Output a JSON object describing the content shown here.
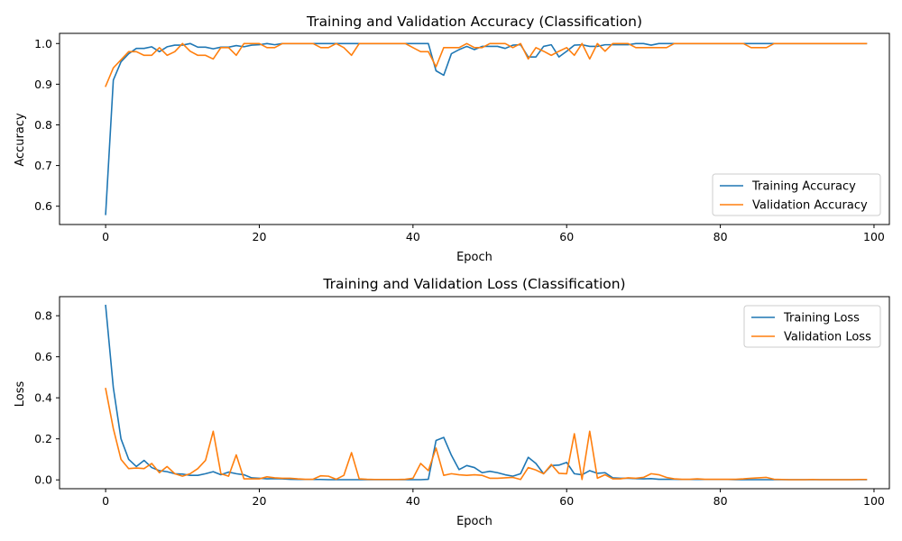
{
  "colors": {
    "training": "#1f77b4",
    "validation": "#ff7f0e",
    "axes": "#000000",
    "legend_border": "#cccccc"
  },
  "chart_data": [
    {
      "type": "line",
      "title": "Training and Validation Accuracy (Classification)",
      "xlabel": "Epoch",
      "ylabel": "Accuracy",
      "xlim": [
        -6,
        102
      ],
      "ylim": [
        0.555,
        1.025
      ],
      "xticks": [
        0,
        20,
        40,
        60,
        80,
        100
      ],
      "yticks": [
        0.6,
        0.7,
        0.8,
        0.9,
        1.0
      ],
      "ytick_labels": [
        "0.6",
        "0.7",
        "0.8",
        "0.9",
        "1.0"
      ],
      "grid": false,
      "legend_position": "lower-right",
      "series": [
        {
          "name": "Training Accuracy",
          "color_key": "training",
          "x": [
            0,
            1,
            2,
            3,
            4,
            5,
            6,
            7,
            8,
            9,
            10,
            11,
            12,
            13,
            14,
            15,
            16,
            17,
            18,
            19,
            20,
            21,
            22,
            23,
            24,
            25,
            26,
            27,
            28,
            29,
            30,
            31,
            32,
            33,
            34,
            35,
            36,
            37,
            38,
            39,
            40,
            41,
            42,
            43,
            44,
            45,
            46,
            47,
            48,
            49,
            50,
            51,
            52,
            53,
            54,
            55,
            56,
            57,
            58,
            59,
            60,
            61,
            62,
            63,
            64,
            65,
            66,
            67,
            68,
            69,
            70,
            71,
            72,
            73,
            74,
            75,
            76,
            77,
            78,
            79,
            80,
            81,
            82,
            83,
            84,
            85,
            86,
            87,
            88,
            89,
            90,
            91,
            92,
            93,
            94,
            95,
            96,
            97,
            98,
            99
          ],
          "values": [
            0.58,
            0.91,
            0.955,
            0.975,
            0.988,
            0.988,
            0.992,
            0.98,
            0.992,
            0.996,
            0.996,
            1.0,
            0.991,
            0.991,
            0.987,
            0.991,
            0.991,
            0.995,
            0.992,
            0.996,
            0.997,
            1.0,
            0.997,
            1.0,
            1.0,
            1.0,
            1.0,
            1.0,
            1.0,
            1.0,
            1.0,
            1.0,
            1.0,
            1.0,
            1.0,
            1.0,
            1.0,
            1.0,
            1.0,
            1.0,
            1.0,
            1.0,
            1.0,
            0.933,
            0.922,
            0.975,
            0.985,
            0.993,
            0.985,
            0.993,
            0.993,
            0.993,
            0.988,
            0.996,
            0.997,
            0.967,
            0.967,
            0.993,
            0.997,
            0.967,
            0.981,
            0.996,
            0.997,
            0.993,
            0.993,
            0.997,
            0.997,
            0.997,
            0.997,
            1.0,
            1.0,
            0.996,
            1.0,
            1.0,
            1.0,
            1.0,
            1.0,
            1.0,
            1.0,
            1.0,
            1.0,
            1.0,
            1.0,
            1.0,
            1.0,
            1.0,
            1.0,
            1.0,
            1.0,
            1.0,
            1.0,
            1.0,
            1.0,
            1.0,
            1.0,
            1.0,
            1.0,
            1.0,
            1.0,
            1.0
          ]
        },
        {
          "name": "Validation Accuracy",
          "color_key": "validation",
          "x": [
            0,
            1,
            2,
            3,
            4,
            5,
            6,
            7,
            8,
            9,
            10,
            11,
            12,
            13,
            14,
            15,
            16,
            17,
            18,
            19,
            20,
            21,
            22,
            23,
            24,
            25,
            26,
            27,
            28,
            29,
            30,
            31,
            32,
            33,
            34,
            35,
            36,
            37,
            38,
            39,
            40,
            41,
            42,
            43,
            44,
            45,
            46,
            47,
            48,
            49,
            50,
            51,
            52,
            53,
            54,
            55,
            56,
            57,
            58,
            59,
            60,
            61,
            62,
            63,
            64,
            65,
            66,
            67,
            68,
            69,
            70,
            71,
            72,
            73,
            74,
            75,
            76,
            77,
            78,
            79,
            80,
            81,
            82,
            83,
            84,
            85,
            86,
            87,
            88,
            89,
            90,
            91,
            92,
            93,
            94,
            95,
            96,
            97,
            98,
            99
          ],
          "values": [
            0.895,
            0.94,
            0.96,
            0.98,
            0.98,
            0.971,
            0.971,
            0.99,
            0.971,
            0.98,
            1.0,
            0.981,
            0.971,
            0.971,
            0.962,
            0.99,
            0.99,
            0.971,
            1.0,
            1.0,
            1.0,
            0.99,
            0.99,
            1.0,
            1.0,
            1.0,
            1.0,
            1.0,
            0.99,
            0.99,
            1.0,
            0.99,
            0.971,
            1.0,
            1.0,
            1.0,
            1.0,
            1.0,
            1.0,
            1.0,
            0.99,
            0.98,
            0.98,
            0.943,
            0.99,
            0.99,
            0.99,
            1.0,
            0.99,
            0.99,
            1.0,
            1.0,
            1.0,
            0.99,
            1.0,
            0.962,
            0.99,
            0.981,
            0.971,
            0.981,
            0.99,
            0.971,
            1.0,
            0.962,
            1.0,
            0.981,
            1.0,
            1.0,
            1.0,
            0.99,
            0.99,
            0.99,
            0.99,
            0.99,
            1.0,
            1.0,
            1.0,
            1.0,
            1.0,
            1.0,
            1.0,
            1.0,
            1.0,
            1.0,
            0.99,
            0.99,
            0.99,
            1.0,
            1.0,
            1.0,
            1.0,
            1.0,
            1.0,
            1.0,
            1.0,
            1.0,
            1.0,
            1.0,
            1.0,
            1.0
          ]
        }
      ]
    },
    {
      "type": "line",
      "title": "Training and Validation Loss (Classification)",
      "xlabel": "Epoch",
      "ylabel": "Loss",
      "xlim": [
        -6,
        102
      ],
      "ylim": [
        -0.043,
        0.893
      ],
      "xticks": [
        0,
        20,
        40,
        60,
        80,
        100
      ],
      "yticks": [
        0.0,
        0.2,
        0.4,
        0.6,
        0.8
      ],
      "ytick_labels": [
        "0.0",
        "0.2",
        "0.4",
        "0.6",
        "0.8"
      ],
      "grid": false,
      "legend_position": "upper-right",
      "series": [
        {
          "name": "Training Loss",
          "color_key": "training",
          "x": [
            0,
            1,
            2,
            3,
            4,
            5,
            6,
            7,
            8,
            9,
            10,
            11,
            12,
            13,
            14,
            15,
            16,
            17,
            18,
            19,
            20,
            21,
            22,
            23,
            24,
            25,
            26,
            27,
            28,
            29,
            30,
            31,
            32,
            33,
            34,
            35,
            36,
            37,
            38,
            39,
            40,
            41,
            42,
            43,
            44,
            45,
            46,
            47,
            48,
            49,
            50,
            51,
            52,
            53,
            54,
            55,
            56,
            57,
            58,
            59,
            60,
            61,
            62,
            63,
            64,
            65,
            66,
            67,
            68,
            69,
            70,
            71,
            72,
            73,
            74,
            75,
            76,
            77,
            78,
            79,
            80,
            81,
            82,
            83,
            84,
            85,
            86,
            87,
            88,
            89,
            90,
            91,
            92,
            93,
            94,
            95,
            96,
            97,
            98,
            99
          ],
          "values": [
            0.85,
            0.45,
            0.2,
            0.1,
            0.065,
            0.095,
            0.06,
            0.045,
            0.04,
            0.03,
            0.028,
            0.022,
            0.022,
            0.03,
            0.04,
            0.025,
            0.038,
            0.03,
            0.025,
            0.01,
            0.008,
            0.005,
            0.006,
            0.005,
            0.003,
            0.002,
            0.002,
            0.002,
            0.002,
            0.001,
            0.001,
            0.001,
            0.001,
            0.001,
            0.001,
            0.001,
            0.001,
            0.001,
            0.001,
            0.001,
            0.001,
            0.001,
            0.003,
            0.192,
            0.207,
            0.12,
            0.05,
            0.07,
            0.06,
            0.035,
            0.042,
            0.035,
            0.025,
            0.018,
            0.03,
            0.11,
            0.08,
            0.03,
            0.07,
            0.072,
            0.085,
            0.03,
            0.025,
            0.045,
            0.032,
            0.035,
            0.01,
            0.008,
            0.008,
            0.006,
            0.005,
            0.006,
            0.003,
            0.003,
            0.003,
            0.002,
            0.002,
            0.002,
            0.002,
            0.002,
            0.002,
            0.002,
            0.001,
            0.001,
            0.001,
            0.001,
            0.001,
            0.001,
            0.001,
            0.001,
            0.001,
            0.001,
            0.001,
            0.001,
            0.001,
            0.001,
            0.001,
            0.001,
            0.001,
            0.001
          ]
        },
        {
          "name": "Validation Loss",
          "color_key": "validation",
          "x": [
            0,
            1,
            2,
            3,
            4,
            5,
            6,
            7,
            8,
            9,
            10,
            11,
            12,
            13,
            14,
            15,
            16,
            17,
            18,
            19,
            20,
            21,
            22,
            23,
            24,
            25,
            26,
            27,
            28,
            29,
            30,
            31,
            32,
            33,
            34,
            35,
            36,
            37,
            38,
            39,
            40,
            41,
            42,
            43,
            44,
            45,
            46,
            47,
            48,
            49,
            50,
            51,
            52,
            53,
            54,
            55,
            56,
            57,
            58,
            59,
            60,
            61,
            62,
            63,
            64,
            65,
            66,
            67,
            68,
            69,
            70,
            71,
            72,
            73,
            74,
            75,
            76,
            77,
            78,
            79,
            80,
            81,
            82,
            83,
            84,
            85,
            86,
            87,
            88,
            89,
            90,
            91,
            92,
            93,
            94,
            95,
            96,
            97,
            98,
            99
          ],
          "values": [
            0.445,
            0.25,
            0.1,
            0.055,
            0.058,
            0.055,
            0.08,
            0.035,
            0.065,
            0.03,
            0.018,
            0.03,
            0.055,
            0.095,
            0.237,
            0.03,
            0.018,
            0.122,
            0.005,
            0.005,
            0.005,
            0.015,
            0.01,
            0.008,
            0.008,
            0.005,
            0.003,
            0.003,
            0.02,
            0.018,
            0.003,
            0.022,
            0.133,
            0.005,
            0.003,
            0.002,
            0.002,
            0.002,
            0.002,
            0.003,
            0.008,
            0.08,
            0.045,
            0.155,
            0.022,
            0.03,
            0.025,
            0.022,
            0.025,
            0.022,
            0.008,
            0.008,
            0.01,
            0.012,
            0.002,
            0.06,
            0.048,
            0.03,
            0.075,
            0.032,
            0.03,
            0.225,
            0.002,
            0.237,
            0.008,
            0.025,
            0.005,
            0.005,
            0.01,
            0.008,
            0.012,
            0.03,
            0.025,
            0.012,
            0.005,
            0.003,
            0.003,
            0.005,
            0.003,
            0.003,
            0.003,
            0.003,
            0.003,
            0.005,
            0.008,
            0.01,
            0.012,
            0.003,
            0.002,
            0.001,
            0.001,
            0.001,
            0.002,
            0.001,
            0.001,
            0.001,
            0.001,
            0.001,
            0.002,
            0.002
          ]
        }
      ]
    }
  ]
}
